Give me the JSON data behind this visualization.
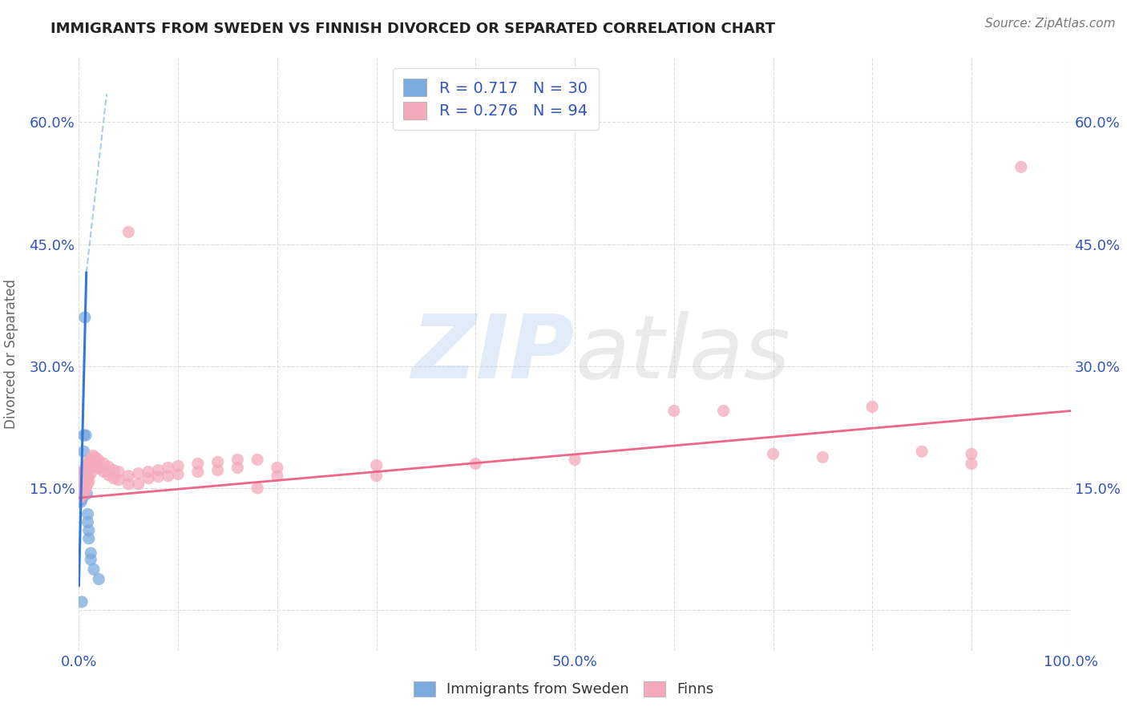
{
  "title": "IMMIGRANTS FROM SWEDEN VS FINNISH DIVORCED OR SEPARATED CORRELATION CHART",
  "source": "Source: ZipAtlas.com",
  "ylabel": "Divorced or Separated",
  "xlim": [
    0.0,
    1.0
  ],
  "ylim": [
    -0.05,
    0.68
  ],
  "xtick_positions": [
    0.0,
    0.1,
    0.2,
    0.3,
    0.4,
    0.5,
    0.6,
    0.7,
    0.8,
    0.9,
    1.0
  ],
  "xticklabels": [
    "0.0%",
    "",
    "",
    "",
    "",
    "50.0%",
    "",
    "",
    "",
    "",
    "100.0%"
  ],
  "ytick_positions": [
    0.0,
    0.15,
    0.3,
    0.45,
    0.6
  ],
  "yticklabels_left": [
    "",
    "15.0%",
    "30.0%",
    "45.0%",
    "60.0%"
  ],
  "yticklabels_right": [
    "",
    "15.0%",
    "30.0%",
    "45.0%",
    "60.0%"
  ],
  "background_color": "#ffffff",
  "legend_color": "#3355bb",
  "scatter_blue": [
    [
      0.001,
      0.155
    ],
    [
      0.001,
      0.148
    ],
    [
      0.001,
      0.143
    ],
    [
      0.001,
      0.138
    ],
    [
      0.002,
      0.152
    ],
    [
      0.002,
      0.146
    ],
    [
      0.002,
      0.14
    ],
    [
      0.002,
      0.133
    ],
    [
      0.003,
      0.158
    ],
    [
      0.003,
      0.15
    ],
    [
      0.003,
      0.143
    ],
    [
      0.003,
      0.136
    ],
    [
      0.004,
      0.162
    ],
    [
      0.004,
      0.155
    ],
    [
      0.004,
      0.148
    ],
    [
      0.005,
      0.215
    ],
    [
      0.005,
      0.195
    ],
    [
      0.006,
      0.36
    ],
    [
      0.007,
      0.215
    ],
    [
      0.008,
      0.168
    ],
    [
      0.008,
      0.143
    ],
    [
      0.009,
      0.118
    ],
    [
      0.009,
      0.108
    ],
    [
      0.01,
      0.098
    ],
    [
      0.01,
      0.088
    ],
    [
      0.012,
      0.07
    ],
    [
      0.012,
      0.062
    ],
    [
      0.015,
      0.05
    ],
    [
      0.02,
      0.038
    ],
    [
      0.003,
      0.01
    ]
  ],
  "scatter_pink": [
    [
      0.001,
      0.155
    ],
    [
      0.001,
      0.148
    ],
    [
      0.001,
      0.143
    ],
    [
      0.001,
      0.138
    ],
    [
      0.002,
      0.16
    ],
    [
      0.002,
      0.15
    ],
    [
      0.002,
      0.145
    ],
    [
      0.002,
      0.14
    ],
    [
      0.003,
      0.165
    ],
    [
      0.003,
      0.155
    ],
    [
      0.003,
      0.148
    ],
    [
      0.003,
      0.142
    ],
    [
      0.004,
      0.17
    ],
    [
      0.004,
      0.16
    ],
    [
      0.004,
      0.155
    ],
    [
      0.004,
      0.148
    ],
    [
      0.005,
      0.168
    ],
    [
      0.005,
      0.158
    ],
    [
      0.005,
      0.152
    ],
    [
      0.005,
      0.145
    ],
    [
      0.006,
      0.172
    ],
    [
      0.006,
      0.162
    ],
    [
      0.006,
      0.155
    ],
    [
      0.006,
      0.148
    ],
    [
      0.007,
      0.175
    ],
    [
      0.007,
      0.165
    ],
    [
      0.007,
      0.158
    ],
    [
      0.007,
      0.15
    ],
    [
      0.008,
      0.178
    ],
    [
      0.008,
      0.168
    ],
    [
      0.008,
      0.16
    ],
    [
      0.008,
      0.153
    ],
    [
      0.009,
      0.18
    ],
    [
      0.009,
      0.17
    ],
    [
      0.009,
      0.163
    ],
    [
      0.009,
      0.156
    ],
    [
      0.01,
      0.183
    ],
    [
      0.01,
      0.173
    ],
    [
      0.01,
      0.165
    ],
    [
      0.01,
      0.158
    ],
    [
      0.012,
      0.185
    ],
    [
      0.012,
      0.175
    ],
    [
      0.012,
      0.168
    ],
    [
      0.014,
      0.19
    ],
    [
      0.014,
      0.18
    ],
    [
      0.016,
      0.188
    ],
    [
      0.016,
      0.178
    ],
    [
      0.018,
      0.186
    ],
    [
      0.018,
      0.176
    ],
    [
      0.02,
      0.184
    ],
    [
      0.02,
      0.174
    ],
    [
      0.025,
      0.18
    ],
    [
      0.025,
      0.17
    ],
    [
      0.03,
      0.176
    ],
    [
      0.03,
      0.166
    ],
    [
      0.035,
      0.172
    ],
    [
      0.035,
      0.162
    ],
    [
      0.04,
      0.17
    ],
    [
      0.04,
      0.16
    ],
    [
      0.05,
      0.165
    ],
    [
      0.05,
      0.155
    ],
    [
      0.06,
      0.168
    ],
    [
      0.06,
      0.155
    ],
    [
      0.07,
      0.17
    ],
    [
      0.07,
      0.162
    ],
    [
      0.08,
      0.172
    ],
    [
      0.08,
      0.164
    ],
    [
      0.09,
      0.175
    ],
    [
      0.09,
      0.165
    ],
    [
      0.1,
      0.177
    ],
    [
      0.1,
      0.167
    ],
    [
      0.12,
      0.18
    ],
    [
      0.12,
      0.17
    ],
    [
      0.14,
      0.182
    ],
    [
      0.14,
      0.172
    ],
    [
      0.16,
      0.185
    ],
    [
      0.16,
      0.175
    ],
    [
      0.18,
      0.185
    ],
    [
      0.18,
      0.15
    ],
    [
      0.05,
      0.465
    ],
    [
      0.2,
      0.175
    ],
    [
      0.2,
      0.165
    ],
    [
      0.3,
      0.178
    ],
    [
      0.3,
      0.165
    ],
    [
      0.4,
      0.18
    ],
    [
      0.5,
      0.185
    ],
    [
      0.6,
      0.245
    ],
    [
      0.65,
      0.245
    ],
    [
      0.7,
      0.192
    ],
    [
      0.75,
      0.188
    ],
    [
      0.8,
      0.25
    ],
    [
      0.85,
      0.195
    ],
    [
      0.9,
      0.192
    ],
    [
      0.9,
      0.18
    ],
    [
      0.95,
      0.545
    ]
  ],
  "blue_scatter_color": "#7BAADE",
  "pink_scatter_color": "#F4AABB",
  "blue_line_color": "#3377DD",
  "pink_line_color": "#EE6688",
  "blue_dashed_color": "#AACCEE",
  "grid_color": "#DDDDDD",
  "title_color": "#222222",
  "axis_label_color": "#3355bb"
}
